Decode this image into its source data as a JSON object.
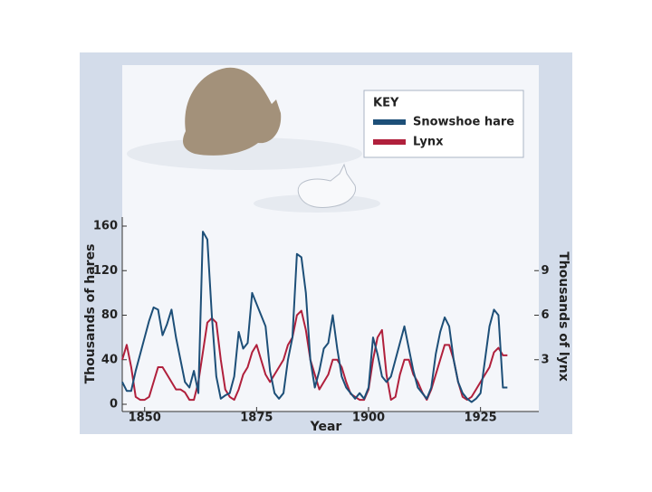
{
  "chart_data": {
    "type": "line",
    "x_label": "Year",
    "y_label": "Thousands of hares",
    "y2_label": "Thousands of lynx",
    "legend_title": "KEY",
    "legend_position": "upper right",
    "x": [
      1845,
      1846,
      1847,
      1848,
      1849,
      1850,
      1851,
      1852,
      1853,
      1854,
      1855,
      1856,
      1857,
      1858,
      1859,
      1860,
      1861,
      1862,
      1863,
      1864,
      1865,
      1866,
      1867,
      1868,
      1869,
      1870,
      1871,
      1872,
      1873,
      1874,
      1875,
      1876,
      1877,
      1878,
      1879,
      1880,
      1881,
      1882,
      1883,
      1884,
      1885,
      1886,
      1887,
      1888,
      1889,
      1890,
      1891,
      1892,
      1893,
      1894,
      1895,
      1896,
      1897,
      1898,
      1899,
      1900,
      1901,
      1902,
      1903,
      1904,
      1905,
      1906,
      1907,
      1908,
      1909,
      1910,
      1911,
      1912,
      1913,
      1914,
      1915,
      1916,
      1917,
      1918,
      1919,
      1920,
      1921,
      1922,
      1923,
      1924,
      1925,
      1926,
      1927,
      1928,
      1929,
      1930,
      1931
    ],
    "series": [
      {
        "name": "Snowshoe hare",
        "color": "#1d4f78",
        "axis": "y",
        "values": [
          20,
          12,
          12,
          30,
          45,
          60,
          75,
          87,
          85,
          62,
          72,
          85,
          60,
          40,
          20,
          15,
          30,
          10,
          155,
          148,
          80,
          25,
          5,
          8,
          10,
          25,
          65,
          50,
          55,
          100,
          90,
          80,
          70,
          30,
          10,
          5,
          10,
          40,
          60,
          135,
          132,
          100,
          40,
          15,
          30,
          50,
          55,
          80,
          50,
          25,
          15,
          10,
          5,
          10,
          5,
          15,
          60,
          45,
          25,
          20,
          25,
          40,
          55,
          70,
          50,
          30,
          15,
          10,
          5,
          15,
          45,
          65,
          78,
          70,
          40,
          20,
          10,
          5,
          2,
          5,
          10,
          40,
          70,
          85,
          80,
          15,
          15
        ]
      },
      {
        "name": "Lynx",
        "color": "#b0203c",
        "axis": "y2",
        "values": [
          3,
          4,
          2.5,
          0.5,
          0.3,
          0.3,
          0.5,
          1.5,
          2.5,
          2.5,
          2,
          1.5,
          1,
          1,
          0.8,
          0.3,
          0.3,
          1.5,
          3.5,
          5.5,
          5.8,
          5.5,
          3,
          1,
          0.5,
          0.3,
          1,
          2,
          2.5,
          3.5,
          4,
          3,
          2,
          1.5,
          2,
          2.5,
          3,
          4,
          4.5,
          6,
          6.3,
          5,
          3,
          2,
          1,
          1.5,
          2,
          3,
          3,
          2.5,
          1.5,
          0.7,
          0.5,
          0.3,
          0.3,
          1,
          3,
          4.5,
          5,
          2,
          0.3,
          0.5,
          2,
          3,
          3,
          2,
          1.5,
          0.8,
          0.3,
          1,
          2,
          3,
          4,
          4,
          3,
          1.5,
          0.5,
          0.3,
          0.5,
          1,
          1.5,
          2,
          2.5,
          3.5,
          3.8,
          3.3,
          3.3
        ]
      }
    ],
    "xlim": [
      1845,
      1937
    ],
    "xticks": [
      1850,
      1875,
      1900,
      1925
    ],
    "ylim": [
      0,
      160
    ],
    "yticks": [
      0,
      40,
      80,
      120,
      160
    ],
    "y2lim": [
      0,
      12
    ],
    "y2ticks": [
      3,
      6,
      9
    ],
    "grid": false
  }
}
